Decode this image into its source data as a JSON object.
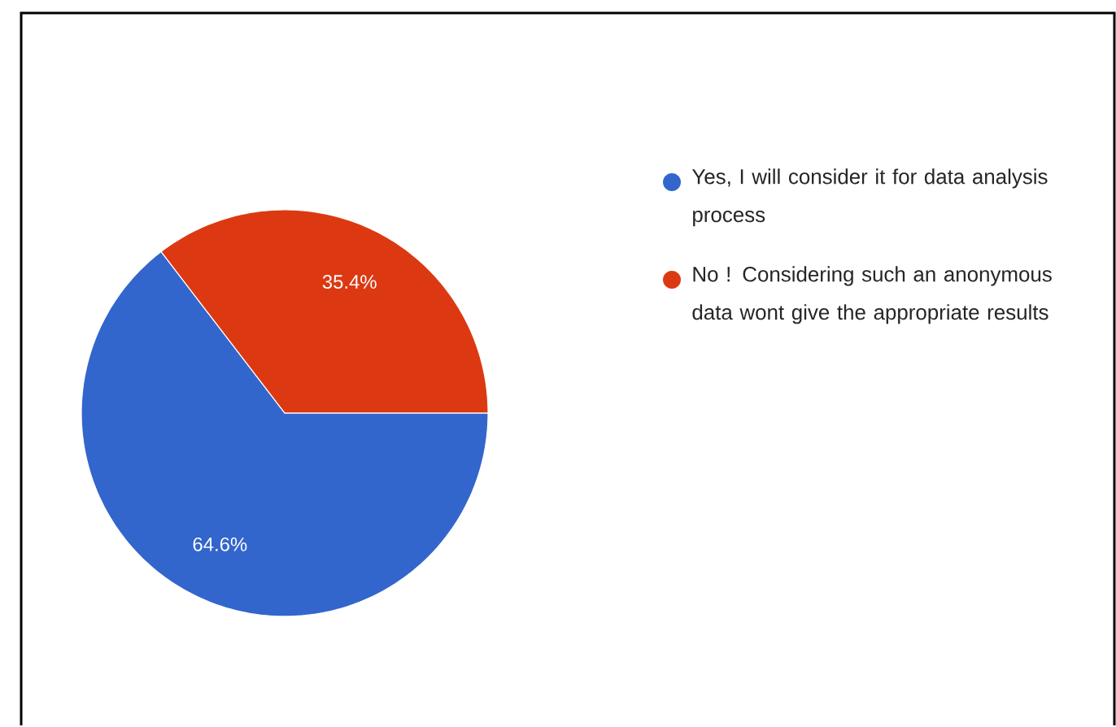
{
  "chart_data": {
    "type": "pie",
    "categories": [
      "Yes, I will consider it for data analysis process",
      "No ! Considering such an anonymous data wont give the appropriate results"
    ],
    "values": [
      64.6,
      35.4
    ],
    "colors": [
      "#3366cc",
      "#dc3912"
    ],
    "value_labels": [
      "64.6%",
      "35.4%"
    ],
    "legend": "right"
  }
}
